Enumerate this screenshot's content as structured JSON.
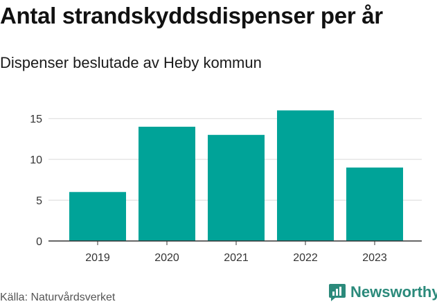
{
  "header": {
    "title": "Antal strandskyddsdispenser per år",
    "subtitle": "Dispenser beslutade av Heby kommun"
  },
  "footer": {
    "source": "Källa: Naturvårdsverket",
    "brand": "Newsworthy",
    "brand_icon": "newsworthy-logo-icon"
  },
  "colors": {
    "bar": "#00A398",
    "grid": "#d9d9d9",
    "axis": "#333333",
    "brand": "#2b8a7b"
  },
  "chart_data": {
    "type": "bar",
    "categories": [
      "2019",
      "2020",
      "2021",
      "2022",
      "2023"
    ],
    "values": [
      6,
      14,
      13,
      16,
      9
    ],
    "title": "Antal strandskyddsdispenser per år",
    "subtitle": "Dispenser beslutade av Heby kommun",
    "xlabel": "",
    "ylabel": "",
    "ylim": [
      0,
      16
    ],
    "yticks": [
      0,
      5,
      10,
      15
    ],
    "grid": true,
    "legend": "none"
  }
}
